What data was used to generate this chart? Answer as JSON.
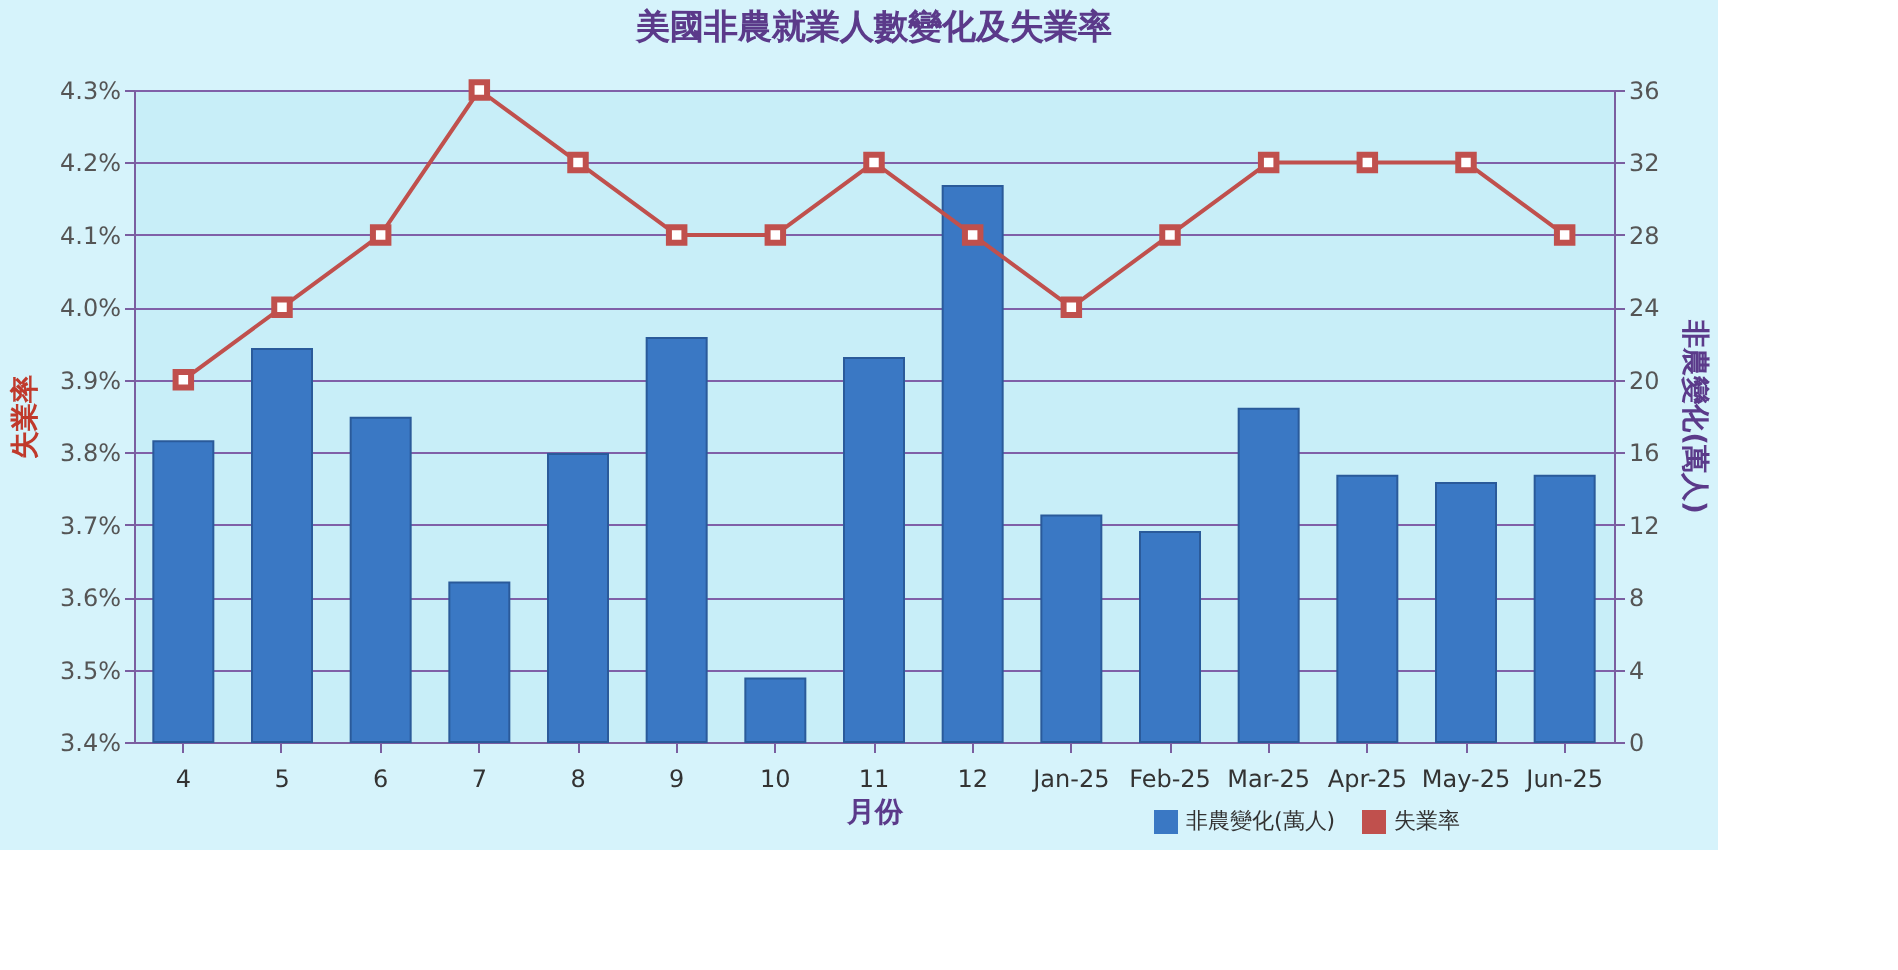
{
  "chart_data": {
    "type": "bar",
    "title": "美國非農就業人數變化及失業率",
    "xlabel": "月份",
    "ylabel": "失業率",
    "y2label": "非農變化(萬人)",
    "categories": [
      "4",
      "5",
      "6",
      "7",
      "8",
      "9",
      "10",
      "11",
      "12",
      "Jan-25",
      "Feb-25",
      "Mar-25",
      "Apr-25",
      "May-25",
      "Jun-25"
    ],
    "series": [
      {
        "name": "非農變化(萬人)",
        "axis": "y2",
        "color": "#3a78c4",
        "values": [
          16.6,
          21.7,
          17.9,
          8.8,
          15.9,
          22.3,
          3.5,
          21.2,
          30.7,
          12.5,
          11.6,
          18.4,
          14.7,
          14.3,
          14.7
        ]
      },
      {
        "name": "失業率",
        "type": "line",
        "axis": "y",
        "color": "#c0504d",
        "marker": "square",
        "values": [
          3.9,
          4.0,
          4.1,
          4.3,
          4.2,
          4.1,
          4.1,
          4.2,
          4.1,
          4.0,
          4.1,
          4.2,
          4.2,
          4.2,
          4.1
        ]
      }
    ],
    "ylim": [
      3.4,
      4.3
    ],
    "yticks": [
      {
        "value": 3.4,
        "label": "3.4%"
      },
      {
        "value": 3.5,
        "label": "3.5%"
      },
      {
        "value": 3.6,
        "label": "3.6%"
      },
      {
        "value": 3.7,
        "label": "3.7%"
      },
      {
        "value": 3.8,
        "label": "3.8%"
      },
      {
        "value": 3.9,
        "label": "3.9%"
      },
      {
        "value": 4.0,
        "label": "4.0%"
      },
      {
        "value": 4.1,
        "label": "4.1%"
      },
      {
        "value": 4.2,
        "label": "4.2%"
      },
      {
        "value": 4.3,
        "label": "4.3%"
      }
    ],
    "y2lim": [
      0,
      36
    ],
    "y2ticks": [
      0,
      4,
      8,
      12,
      16,
      20,
      24,
      28,
      32,
      36
    ],
    "grid": "y",
    "legend": "bottom right"
  }
}
